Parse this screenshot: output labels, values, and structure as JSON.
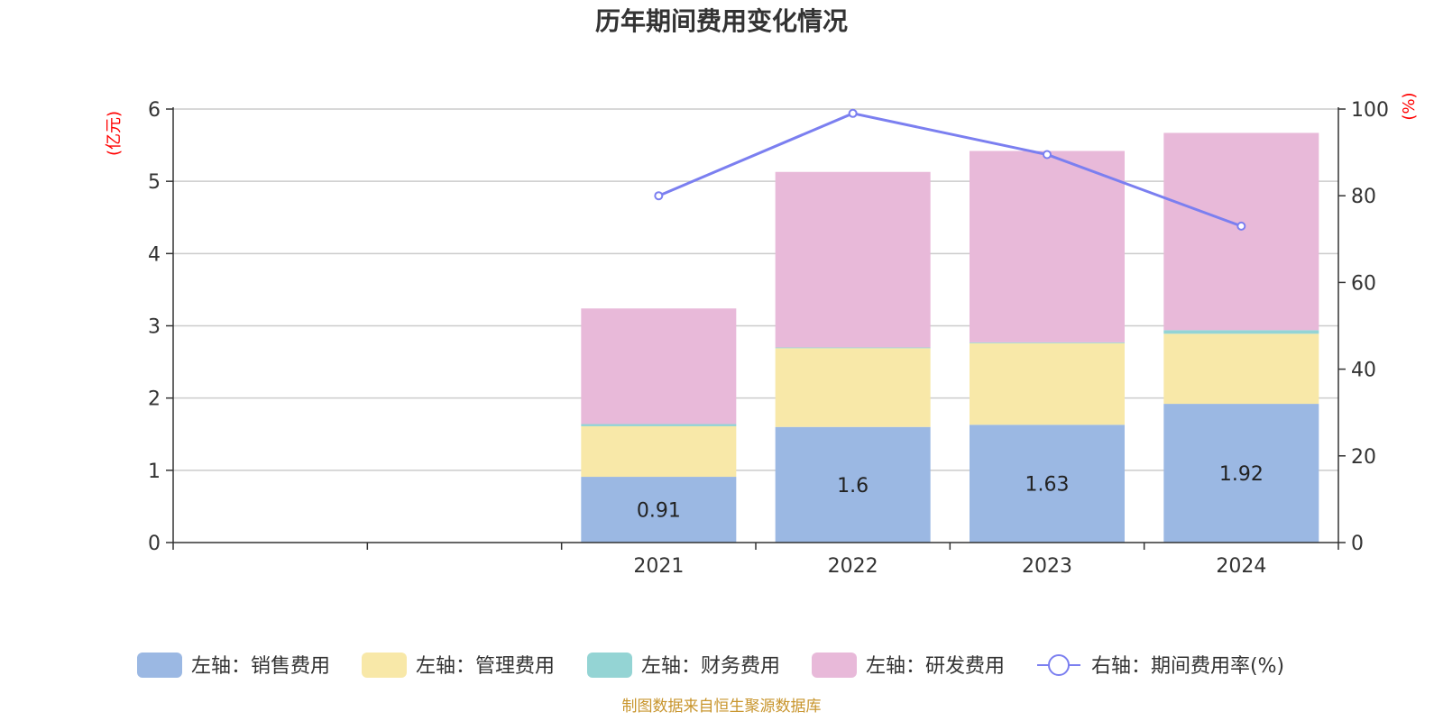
{
  "chart_data": {
    "type": "bar",
    "title": "历年期间费用变化情况",
    "categories": [
      "",
      "",
      "2021",
      "2022",
      "2023",
      "2024"
    ],
    "left_axis": {
      "unit_label": "(亿元)",
      "ylim": [
        0,
        6
      ],
      "ticks": [
        0,
        1,
        2,
        3,
        4,
        5,
        6
      ]
    },
    "right_axis": {
      "unit_label": "(%)",
      "ylim": [
        0,
        100
      ],
      "ticks": [
        0,
        20,
        40,
        60,
        80,
        100
      ]
    },
    "series": [
      {
        "name": "左轴：销售费用",
        "stack": "left",
        "color": "#9bb8e3",
        "values": [
          null,
          null,
          0.91,
          1.6,
          1.63,
          1.92
        ],
        "show_labels": true
      },
      {
        "name": "左轴：管理费用",
        "stack": "left",
        "color": "#f8e8a8",
        "values": [
          null,
          null,
          0.7,
          1.09,
          1.13,
          0.97
        ]
      },
      {
        "name": "左轴：财务费用",
        "stack": "left",
        "color": "#94d4d4",
        "values": [
          null,
          null,
          0.03,
          0.01,
          0.01,
          0.05
        ]
      },
      {
        "name": "左轴：研发费用",
        "stack": "left",
        "color": "#e8b9d9",
        "values": [
          null,
          null,
          1.6,
          2.43,
          2.65,
          2.73
        ]
      },
      {
        "name": "右轴：期间费用率(%)",
        "type": "line",
        "axis": "right",
        "color": "#7b7ff0",
        "values": [
          null,
          null,
          80,
          99,
          89.5,
          73
        ]
      }
    ],
    "grid": true,
    "legend_position": "bottom",
    "colors": {
      "title": "#333333",
      "unit": "#ff0000",
      "grid": "#cccccc",
      "axis": "#333333",
      "source": "#c8952d"
    }
  },
  "footer": {
    "source": "制图数据来自恒生聚源数据库"
  }
}
